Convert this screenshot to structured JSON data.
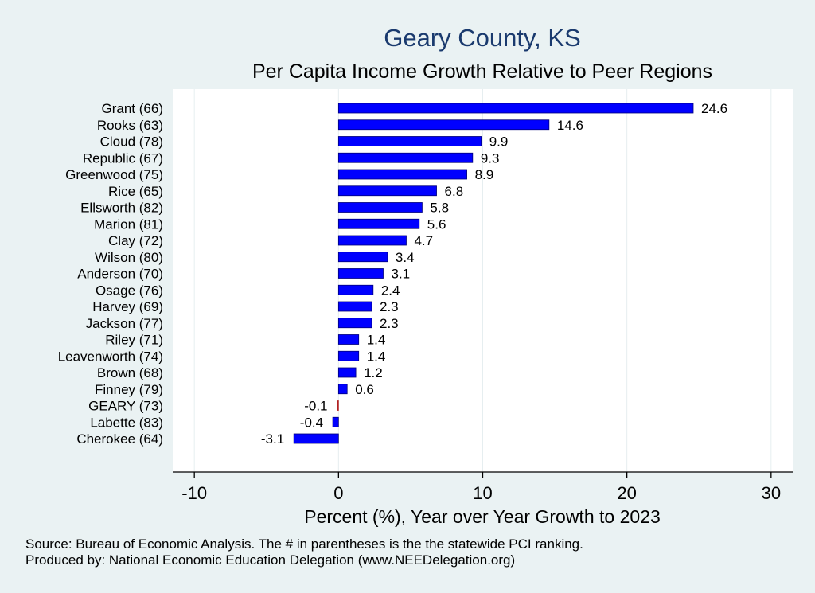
{
  "chart_data": {
    "type": "bar",
    "orientation": "horizontal",
    "title": "Geary County, KS",
    "subtitle": "Per Capita Income Growth Relative to Peer Regions",
    "xlabel": "Percent (%), Year over Year Growth to 2023",
    "ylabel": "",
    "xlim": [
      -11.5,
      31.5
    ],
    "xticks": [
      -10,
      0,
      10,
      20,
      30
    ],
    "grid": true,
    "categories": [
      "Grant (66)",
      "Rooks (63)",
      "Cloud (78)",
      "Republic (67)",
      "Greenwood (75)",
      "Rice (65)",
      "Ellsworth (82)",
      "Marion (81)",
      "Clay (72)",
      "Wilson (80)",
      "Anderson (70)",
      "Osage (76)",
      "Harvey (69)",
      "Jackson (77)",
      "Riley (71)",
      "Leavenworth (74)",
      "Brown (68)",
      "Finney (79)",
      "GEARY (73)",
      "Labette (83)",
      "Cherokee (64)"
    ],
    "values": [
      24.6,
      14.6,
      9.9,
      9.3,
      8.9,
      6.8,
      5.8,
      5.6,
      4.7,
      3.4,
      3.1,
      2.4,
      2.3,
      2.3,
      1.4,
      1.4,
      1.2,
      0.6,
      -0.1,
      -0.4,
      -3.1
    ],
    "value_labels": [
      "24.6",
      "14.6",
      "9.9",
      "9.3",
      "8.9",
      "6.8",
      "5.8",
      "5.6",
      "4.7",
      "3.4",
      "3.1",
      "2.4",
      "2.3",
      "2.3",
      "1.4",
      "1.4",
      "1.2",
      "0.6",
      "-0.1",
      "-0.4",
      "-3.1"
    ],
    "highlight_category": "GEARY (73)",
    "colors": {
      "bar": "#0000ff",
      "bar_edge": "#00007a",
      "highlight": "#b22222",
      "plot_bg": "#ffffff",
      "page_bg": "#eaf2f3",
      "grid": "#e6eef0",
      "title": "#1a3a6e"
    }
  },
  "footer": {
    "source": "Source: Bureau of Economic Analysis. The # in parentheses is the the statewide PCI ranking.",
    "produced_by": "Produced by: National Economic Education Delegation (www.NEEDelegation.org)"
  }
}
